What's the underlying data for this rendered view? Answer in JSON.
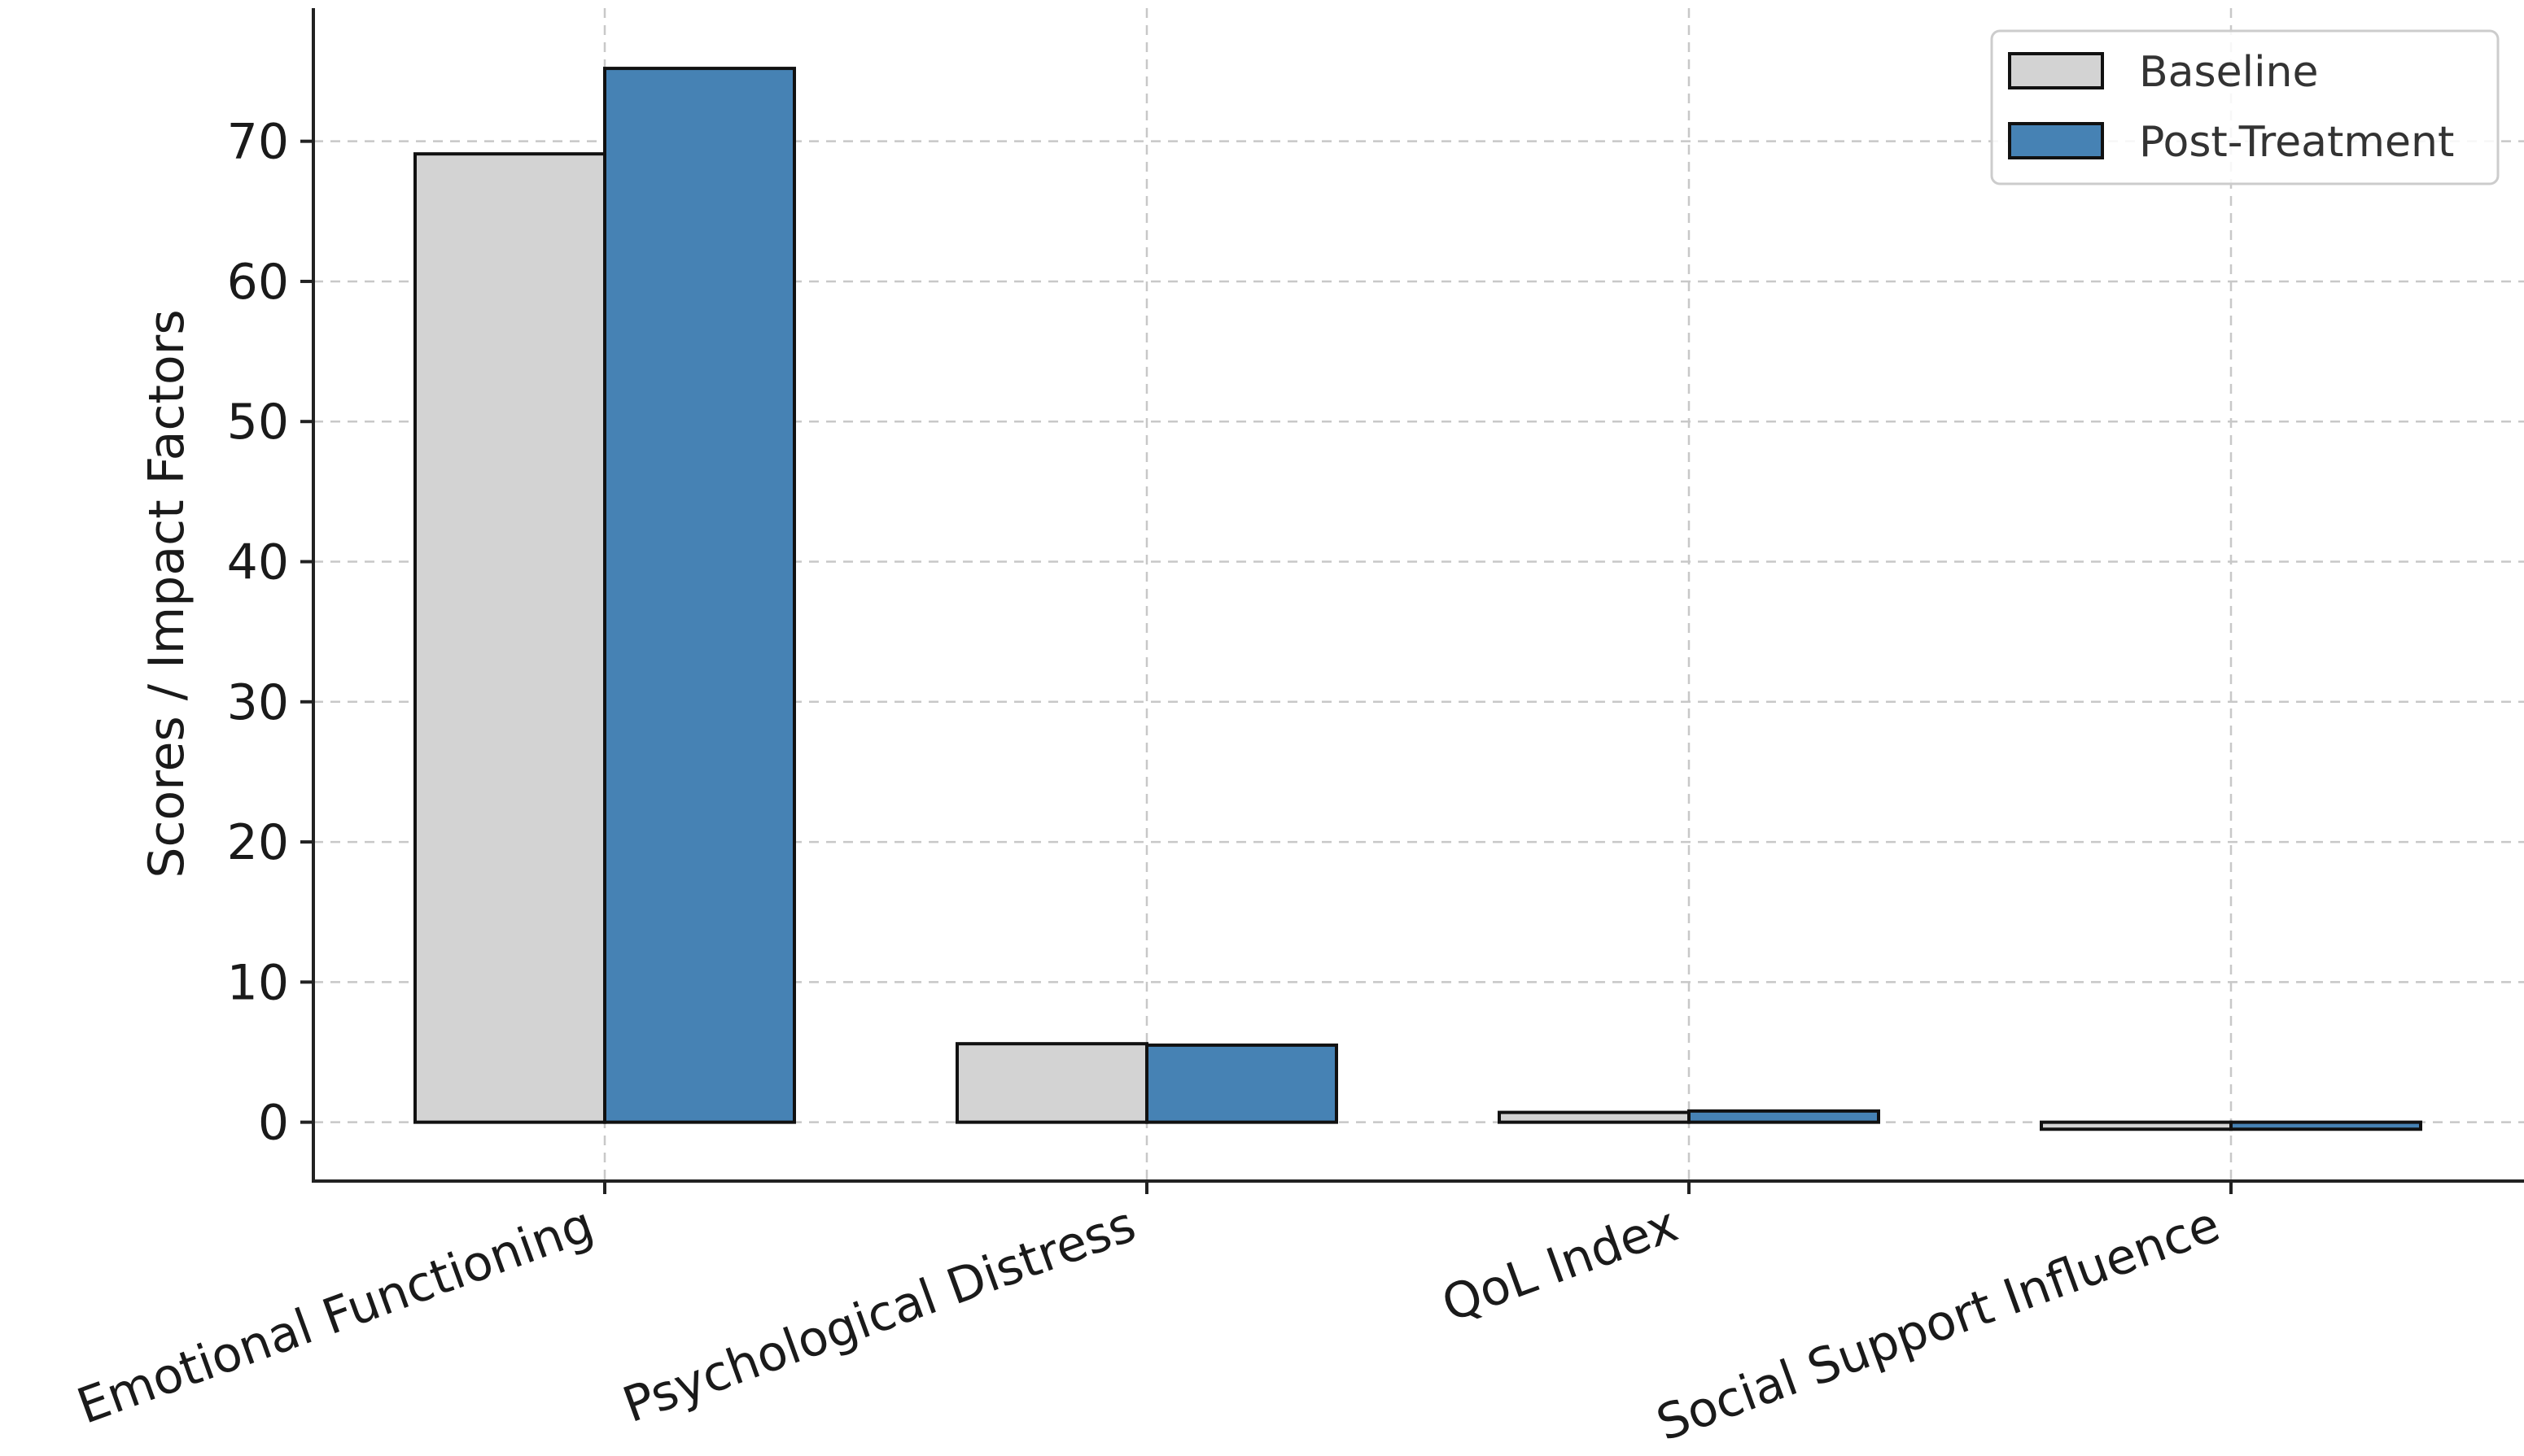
{
  "chart_data": {
    "type": "bar",
    "categories": [
      "Emotional Functioning",
      "Psychological Distress",
      "QoL Index",
      "Social Support Influence"
    ],
    "series": [
      {
        "name": "Baseline",
        "values": [
          69.1,
          5.6,
          0.7,
          -0.5
        ],
        "color": "#d3d3d3"
      },
      {
        "name": "Post-Treatment",
        "values": [
          75.2,
          5.5,
          0.8,
          -0.5
        ],
        "color": "#4682b4"
      }
    ],
    "title": "",
    "xlabel": "",
    "ylabel": "Scores / Impact Factors",
    "ylim": [
      -4.2,
      79.5
    ],
    "yticks": [
      0,
      10,
      20,
      30,
      40,
      50,
      60,
      70
    ],
    "grid": true,
    "legend_position": "top-right"
  }
}
